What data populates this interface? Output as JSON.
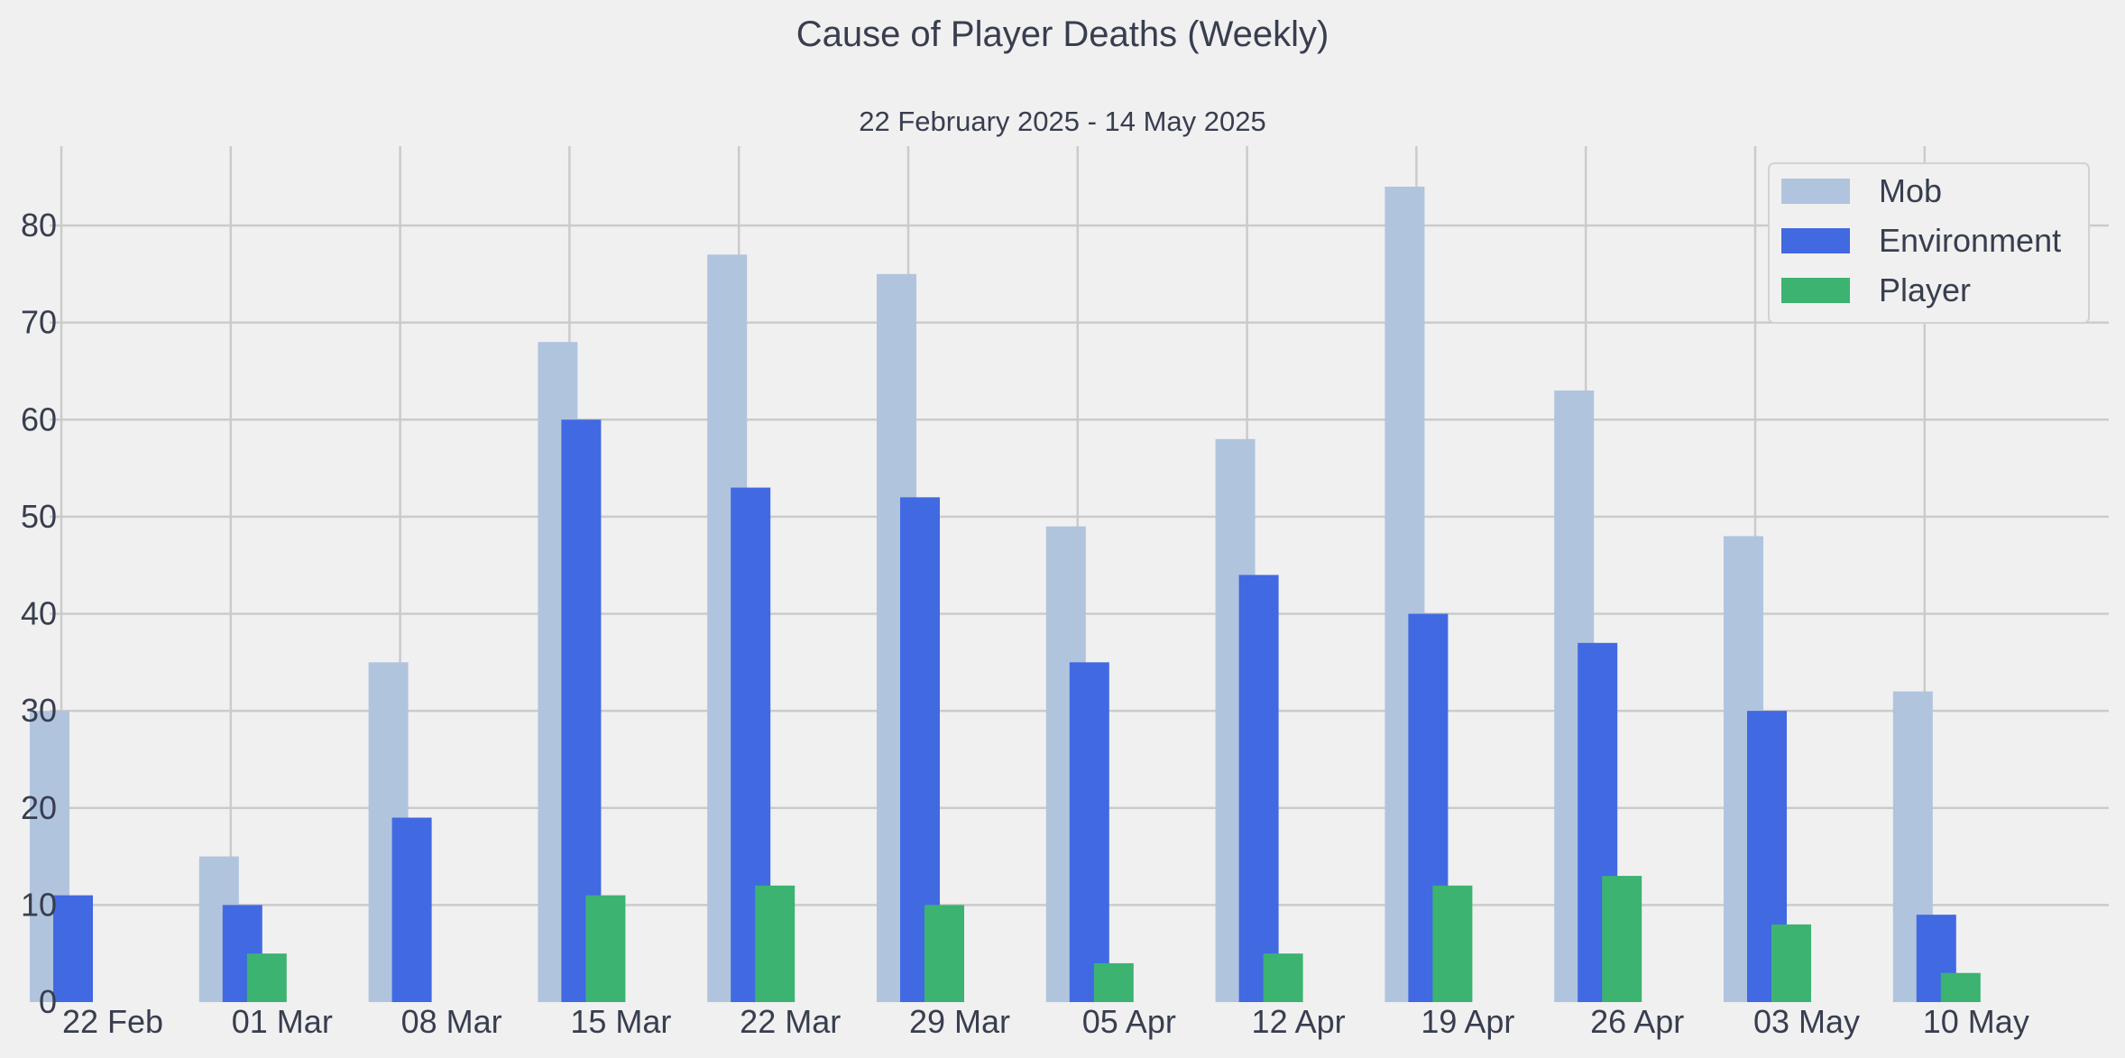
{
  "chart_data": {
    "type": "bar",
    "title": "Cause of Player Deaths (Weekly)",
    "subtitle": "22 February 2025 - 14 May 2025",
    "xlabel": "",
    "ylabel": "",
    "categories": [
      "22 Feb",
      "01 Mar",
      "08 Mar",
      "15 Mar",
      "22 Mar",
      "29 Mar",
      "05 Apr",
      "12 Apr",
      "19 Apr",
      "26 Apr",
      "03 May",
      "10 May"
    ],
    "series": [
      {
        "name": "Mob",
        "color": "#b0c4de",
        "values": [
          30,
          15,
          35,
          68,
          77,
          75,
          49,
          58,
          84,
          63,
          48,
          32
        ]
      },
      {
        "name": "Environment",
        "color": "#4169e1",
        "values": [
          11,
          10,
          19,
          60,
          53,
          52,
          35,
          44,
          40,
          37,
          30,
          9
        ]
      },
      {
        "name": "Player",
        "color": "#3cb371",
        "values": [
          0,
          5,
          0,
          11,
          12,
          10,
          4,
          5,
          12,
          13,
          8,
          3
        ]
      }
    ],
    "ylim": [
      0,
      88
    ],
    "yticks": [
      0,
      10,
      20,
      30,
      40,
      50,
      60,
      70,
      80
    ],
    "grid": true,
    "legend_position": "top-right"
  }
}
